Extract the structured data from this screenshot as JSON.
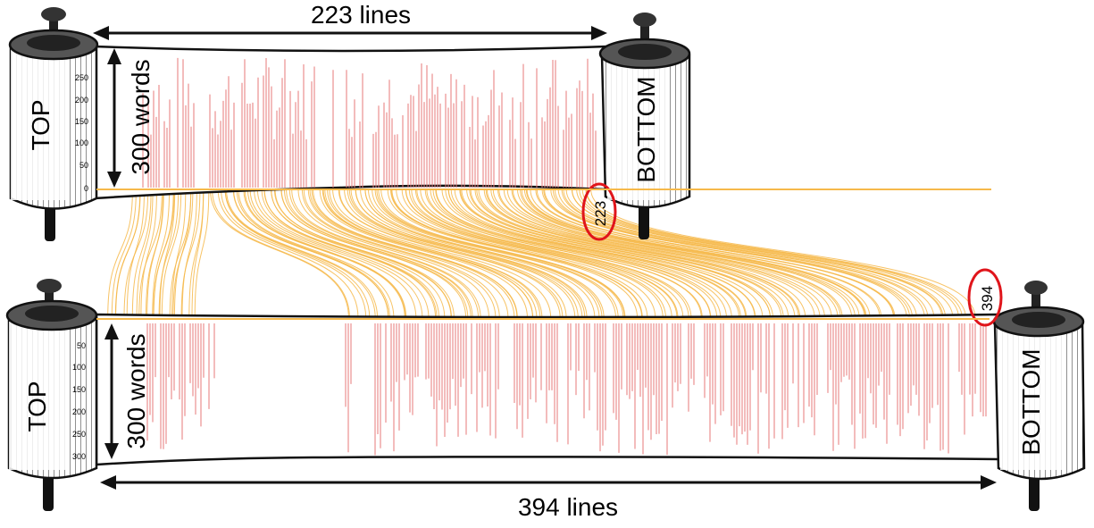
{
  "top_scroll": {
    "width_label": "223 lines",
    "height_label": "300 words",
    "left_roller_label": "TOP",
    "right_roller_label": "BOTTOM",
    "line_count_marker": "223",
    "ticks": [
      "250",
      "200",
      "150",
      "100",
      "50",
      "0"
    ]
  },
  "bottom_scroll": {
    "width_label": "394 lines",
    "height_label": "300 words",
    "left_roller_label": "TOP",
    "right_roller_label": "BOTTOM",
    "line_count_marker": "394",
    "ticks": [
      "50",
      "100",
      "150",
      "200",
      "250",
      "300"
    ]
  },
  "colors": {
    "word_bar": "#e77a7a",
    "link_line": "#f6b94a",
    "marker_circle": "#e0151b",
    "ink": "#111111"
  }
}
